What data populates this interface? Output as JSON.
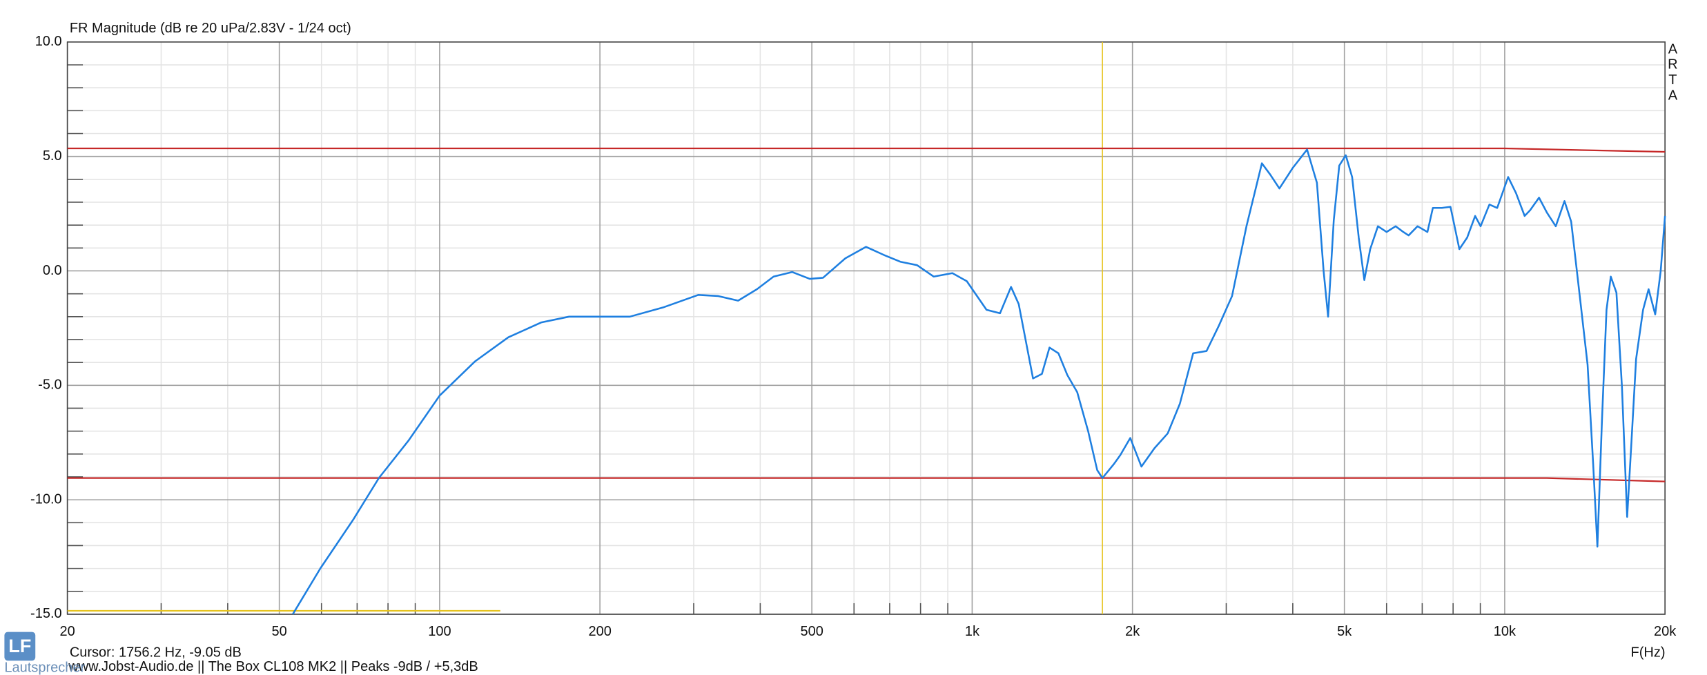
{
  "chart_data": {
    "type": "line",
    "title": "FR Magnitude (dB re 20 uPa/2.83V - 1/24 oct)",
    "brand": [
      "A",
      "R",
      "T",
      "A"
    ],
    "cursor_label": "Cursor: 1756.2 Hz, -9.05 dB",
    "cursor_x": 1756.2,
    "cursor_color": "#e6c31e",
    "x_label": "F(Hz)",
    "footer": "www.Jobst-Audio.de  ||  The Box CL108 MK2 ||  Peaks -9dB / +5,3dB",
    "logo": "LF",
    "logo_text": "Lautsprecher",
    "log_x": true,
    "grid": true,
    "xlim": [
      20,
      20000
    ],
    "ylim": [
      -15,
      10
    ],
    "xticks": [
      20,
      50,
      100,
      200,
      500,
      {
        "value": 1000,
        "label": "1k"
      },
      {
        "value": 2000,
        "label": "2k"
      },
      {
        "value": 5000,
        "label": "5k"
      },
      {
        "value": 10000,
        "label": "10k"
      },
      {
        "value": 20000,
        "label": "20k"
      }
    ],
    "x_minor_ticks": [
      30,
      40,
      60,
      70,
      80,
      90,
      300,
      400,
      600,
      700,
      800,
      900,
      3000,
      4000,
      6000,
      7000,
      8000,
      9000
    ],
    "yticks": [
      {
        "value": 10,
        "label": "10.0"
      },
      {
        "value": 5,
        "label": "5.0"
      },
      {
        "value": 0,
        "label": "0.0"
      },
      {
        "value": -5,
        "label": "-5.0"
      },
      {
        "value": -10,
        "label": "-10.0"
      },
      {
        "value": -15,
        "label": "-15.0"
      }
    ],
    "y_minor_ticks": [
      9,
      8,
      7,
      6,
      4,
      3,
      2,
      1,
      -1,
      -2,
      -3,
      -4,
      -6,
      -7,
      -8,
      -9,
      -11,
      -12,
      -13,
      -14
    ],
    "series": [
      {
        "color": "#c62828",
        "x": [
          20,
          10000,
          20000
        ],
        "values": [
          5.35,
          5.35,
          5.2
        ]
      },
      {
        "color": "#c62828",
        "x": [
          20,
          12000,
          20000
        ],
        "values": [
          -9.05,
          -9.05,
          -9.2
        ]
      },
      {
        "color": "#e6c31e",
        "x": [
          20,
          130
        ],
        "values": [
          -14.85,
          -14.85
        ]
      },
      {
        "color": "#1e7fe0",
        "x": [
          53,
          59.7,
          68.9,
          76.9,
          87.5,
          100,
          116.6,
          134.6,
          155.3,
          175,
          201.9,
          227.6,
          262.6,
          306,
          333.6,
          363.5,
          394.4,
          423.7,
          459.4,
          495.6,
          524.8,
          578,
          632,
          682,
          733,
          788,
          847,
          918,
          977,
          1064,
          1128,
          1183,
          1223,
          1301,
          1352,
          1397,
          1452,
          1509,
          1575,
          1651,
          1717,
          1756.2,
          1844,
          1897,
          1981,
          2079,
          2199,
          2329,
          2455,
          2600,
          2755,
          2905,
          3076,
          3274,
          3500,
          3630,
          3775,
          4000,
          4255,
          4440,
          4570,
          4660,
          4775,
          4890,
          5030,
          5170,
          5320,
          5450,
          5590,
          5780,
          6000,
          6240,
          6450,
          6600,
          6860,
          7160,
          7330,
          7620,
          7910,
          8220,
          8500,
          8800,
          9010,
          9360,
          9680,
          10150,
          10500,
          10900,
          11160,
          11600,
          12000,
          12470,
          12950,
          13330,
          13850,
          14310,
          14660,
          14930,
          15230,
          15530,
          15820,
          16210,
          16600,
          16980,
          17300,
          17650,
          18190,
          18630,
          19170,
          19630,
          20000
        ],
        "values": [
          -15,
          -13,
          -10.85,
          -9.05,
          -7.4,
          -5.45,
          -3.95,
          -2.9,
          -2.25,
          -2,
          -2,
          -2,
          -1.6,
          -1.05,
          -1.1,
          -1.3,
          -0.8,
          -0.25,
          -0.05,
          -0.35,
          -0.3,
          0.55,
          1.05,
          0.7,
          0.4,
          0.25,
          -0.25,
          -0.1,
          -0.45,
          -1.7,
          -1.85,
          -0.7,
          -1.45,
          -4.7,
          -4.5,
          -3.35,
          -3.6,
          -4.55,
          -5.3,
          -7,
          -8.7,
          -9.05,
          -8.45,
          -8.05,
          -7.3,
          -8.55,
          -7.75,
          -7.1,
          -5.8,
          -3.6,
          -3.5,
          -2.4,
          -1.1,
          1.95,
          4.7,
          4.2,
          3.6,
          4.5,
          5.3,
          3.85,
          0,
          -2,
          2.2,
          4.6,
          5.05,
          4.1,
          1.45,
          -0.4,
          0.95,
          1.95,
          1.7,
          1.95,
          1.7,
          1.55,
          1.95,
          1.7,
          2.75,
          2.75,
          2.8,
          0.95,
          1.45,
          2.4,
          1.95,
          2.9,
          2.75,
          4.1,
          3.4,
          2.4,
          2.65,
          3.2,
          2.55,
          1.95,
          3.05,
          2.15,
          -1.2,
          -4.1,
          -8.45,
          -12.05,
          -6.5,
          -1.7,
          -0.25,
          -0.95,
          -5.05,
          -10.75,
          -7.45,
          -3.85,
          -1.7,
          -0.8,
          -1.9,
          0,
          2.4
        ]
      }
    ]
  }
}
